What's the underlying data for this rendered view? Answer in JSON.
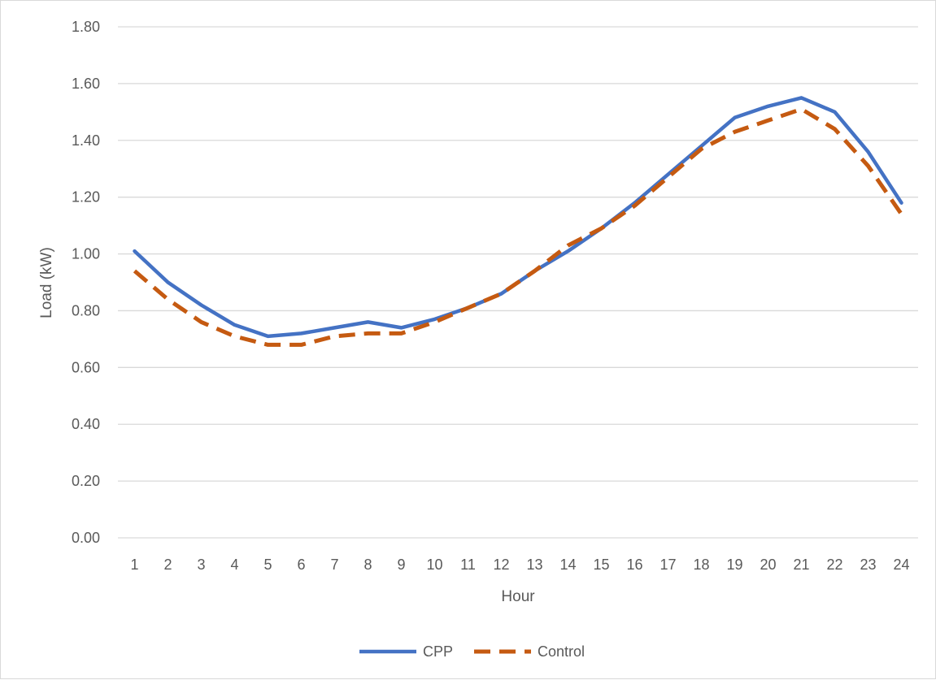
{
  "chart_data": {
    "type": "line",
    "title": "",
    "xlabel": "Hour",
    "ylabel": "Load (kW)",
    "categories": [
      "1",
      "2",
      "3",
      "4",
      "5",
      "6",
      "7",
      "8",
      "9",
      "10",
      "11",
      "12",
      "13",
      "14",
      "15",
      "16",
      "17",
      "18",
      "19",
      "20",
      "21",
      "22",
      "23",
      "24"
    ],
    "ylim": [
      0,
      1.8
    ],
    "yticks": [
      "0.00",
      "0.20",
      "0.40",
      "0.60",
      "0.80",
      "1.00",
      "1.20",
      "1.40",
      "1.60",
      "1.80"
    ],
    "grid": true,
    "legend_position": "bottom",
    "series": [
      {
        "name": "CPP",
        "color": "#4472c4",
        "style": "solid",
        "values": [
          1.01,
          0.9,
          0.82,
          0.75,
          0.71,
          0.72,
          0.74,
          0.76,
          0.74,
          0.77,
          0.81,
          0.86,
          0.94,
          1.01,
          1.09,
          1.18,
          1.28,
          1.38,
          1.48,
          1.52,
          1.55,
          1.5,
          1.36,
          1.18
        ]
      },
      {
        "name": "Control",
        "color": "#c55a11",
        "style": "dashed",
        "values": [
          0.94,
          0.84,
          0.76,
          0.71,
          0.68,
          0.68,
          0.71,
          0.72,
          0.72,
          0.76,
          0.81,
          0.86,
          0.94,
          1.03,
          1.09,
          1.17,
          1.27,
          1.37,
          1.43,
          1.47,
          1.51,
          1.44,
          1.31,
          1.14
        ]
      }
    ]
  }
}
